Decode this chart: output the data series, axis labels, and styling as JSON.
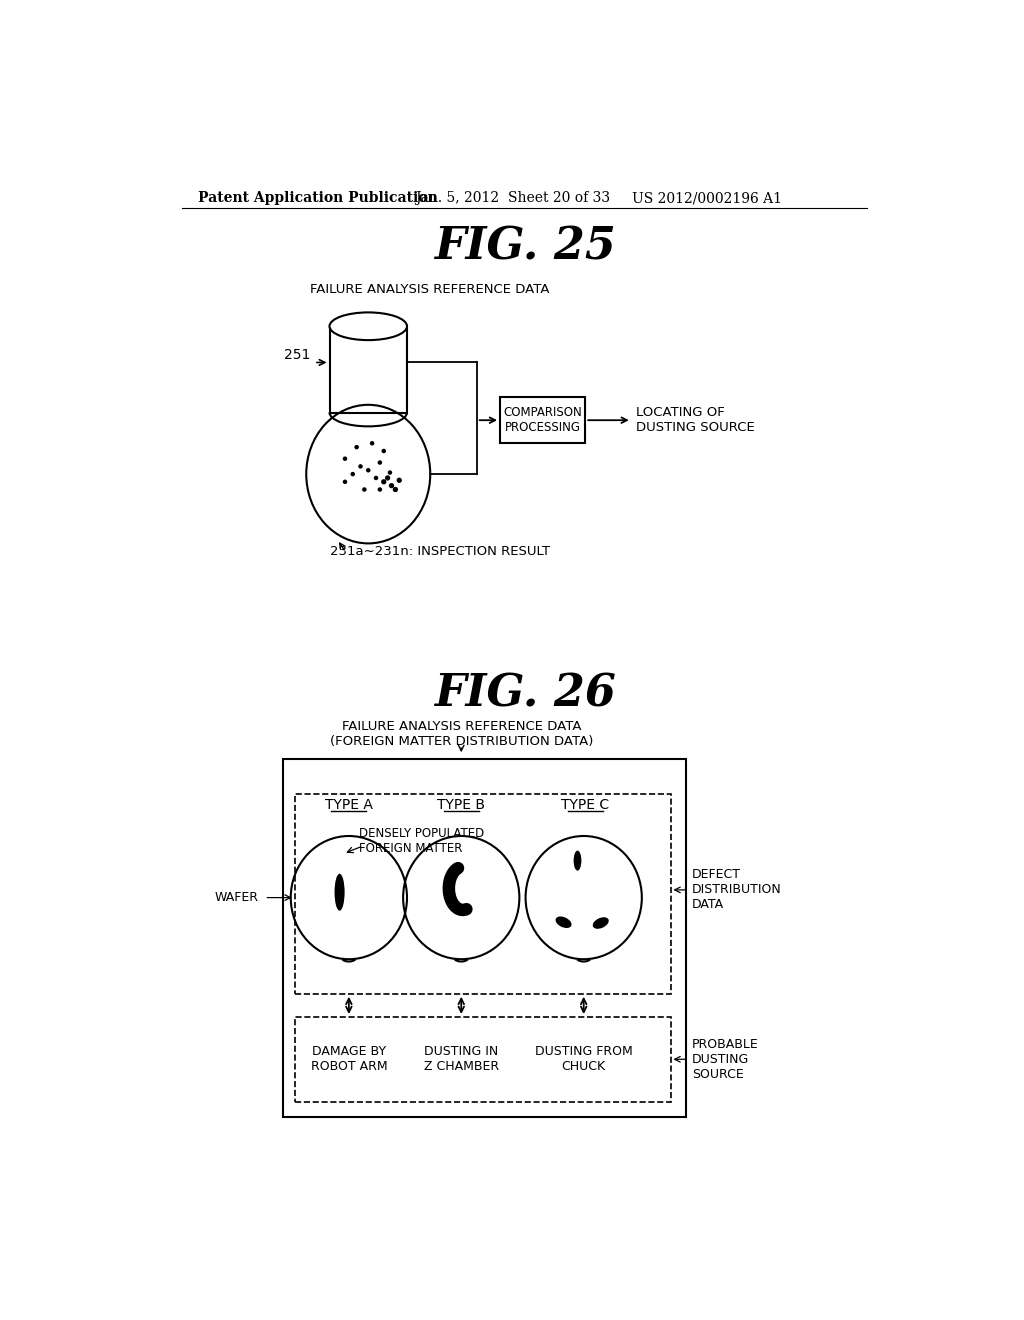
{
  "background_color": "#ffffff",
  "header_text": "Patent Application Publication",
  "header_date": "Jan. 5, 2012",
  "header_sheet": "Sheet 20 of 33",
  "header_patent": "US 2012/0002196 A1",
  "fig25_title": "FIG. 25",
  "fig25_label_db": "FAILURE ANALYSIS REFERENCE DATA",
  "fig25_label_251": "251",
  "fig25_label_comparison": "COMPARISON\nPROCESSING",
  "fig25_label_locating": "LOCATING OF\nDUSTING SOURCE",
  "fig25_label_inspection": "231a∼231n: INSPECTION RESULT",
  "fig26_title": "FIG. 26",
  "fig26_label_failure": "FAILURE ANALYSIS REFERENCE DATA\n(FOREIGN MATTER DISTRIBUTION DATA)",
  "fig26_type_a": "TYPE A",
  "fig26_type_b": "TYPE B",
  "fig26_type_c": "TYPE C",
  "fig26_densely": "DENSELY POPULATED\nFOREIGN MATTER",
  "fig26_defect": "DEFECT\nDISTRIBUTION\nDATA",
  "fig26_wafer": "WAFER",
  "fig26_probable": "PROBABLE\nDUSTING\nSOURCE",
  "fig26_damage": "DAMAGE BY\nROBOT ARM",
  "fig26_dusting_z": "DUSTING IN\nZ CHAMBER",
  "fig26_dusting_chuck": "DUSTING FROM\nCHUCK"
}
